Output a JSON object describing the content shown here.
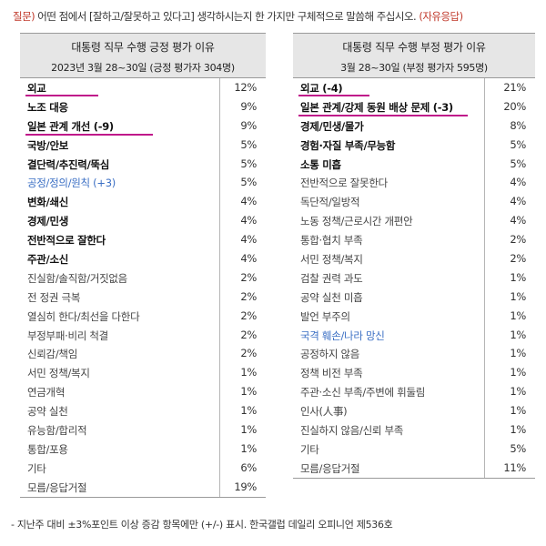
{
  "question": {
    "tag": "질문)",
    "text": " 어떤 점에서 [잘하고/잘못하고 있다고] 생각하시는지 한 가지만 구체적으로 말씀해 주십시오.",
    "tail": " (자유응답)"
  },
  "positive": {
    "title": "대통령 직무 수행 긍정 평가 이유",
    "subtitle": "2023년 3월 28~30일 (긍정 평가자 304명)",
    "rows": [
      {
        "label": "외교",
        "value": "12%",
        "style": "bold",
        "underline": 80
      },
      {
        "label": "노조 대응",
        "value": "9%",
        "style": "bold"
      },
      {
        "label": "일본 관계 개선 (-9)",
        "value": "9%",
        "style": "bold",
        "underline": 140
      },
      {
        "label": "국방/안보",
        "value": "5%",
        "style": "bold"
      },
      {
        "label": "결단력/추진력/뚝심",
        "value": "5%",
        "style": "bold"
      },
      {
        "label": "공정/정의/원칙 (+3)",
        "value": "5%",
        "style": "blue"
      },
      {
        "label": "변화/쇄신",
        "value": "4%",
        "style": "bold"
      },
      {
        "label": "경제/민생",
        "value": "4%",
        "style": "bold"
      },
      {
        "label": "전반적으로 잘한다",
        "value": "4%",
        "style": "bold"
      },
      {
        "label": "주관/소신",
        "value": "4%",
        "style": "bold"
      },
      {
        "label": "진실함/솔직함/거짓없음",
        "value": "2%",
        "style": "norm"
      },
      {
        "label": "전 정권 극복",
        "value": "2%",
        "style": "norm"
      },
      {
        "label": "열심히 한다/최선을 다한다",
        "value": "2%",
        "style": "norm"
      },
      {
        "label": "부정부패·비리 척결",
        "value": "2%",
        "style": "norm"
      },
      {
        "label": "신뢰감/책임",
        "value": "2%",
        "style": "norm"
      },
      {
        "label": "서민 정책/복지",
        "value": "1%",
        "style": "norm"
      },
      {
        "label": "연금개혁",
        "value": "1%",
        "style": "norm"
      },
      {
        "label": "공약 실천",
        "value": "1%",
        "style": "norm"
      },
      {
        "label": "유능함/합리적",
        "value": "1%",
        "style": "norm"
      },
      {
        "label": "통합/포용",
        "value": "1%",
        "style": "norm"
      },
      {
        "label": "기타",
        "value": "6%",
        "style": "norm"
      },
      {
        "label": "모름/응답거절",
        "value": "19%",
        "style": "norm"
      }
    ]
  },
  "negative": {
    "title": "대통령 직무 수행 부정 평가 이유",
    "subtitle": "3월 28~30일 (부정 평가자 595명)",
    "rows": [
      {
        "label": "외교 (-4)",
        "value": "21%",
        "style": "bold",
        "underline": 78
      },
      {
        "label": "일본 관계/강제 동원 배상 문제 (-3)",
        "value": "20%",
        "style": "bold",
        "underline": 186
      },
      {
        "label": "경제/민생/물가",
        "value": "8%",
        "style": "bold"
      },
      {
        "label": "경험·자질 부족/무능함",
        "value": "5%",
        "style": "bold"
      },
      {
        "label": "소통 미흡",
        "value": "5%",
        "style": "bold"
      },
      {
        "label": "전반적으로 잘못한다",
        "value": "4%",
        "style": "norm"
      },
      {
        "label": "독단적/일방적",
        "value": "4%",
        "style": "norm"
      },
      {
        "label": "노동 정책/근로시간 개편안",
        "value": "4%",
        "style": "norm"
      },
      {
        "label": "통합·협치 부족",
        "value": "2%",
        "style": "norm"
      },
      {
        "label": "서민 정책/복지",
        "value": "2%",
        "style": "norm"
      },
      {
        "label": "검찰 권력 과도",
        "value": "1%",
        "style": "norm"
      },
      {
        "label": "공약 실천 미흡",
        "value": "1%",
        "style": "norm"
      },
      {
        "label": "발언 부주의",
        "value": "1%",
        "style": "norm"
      },
      {
        "label": "국격 훼손/나라 망신",
        "value": "1%",
        "style": "blue"
      },
      {
        "label": "공정하지 않음",
        "value": "1%",
        "style": "norm"
      },
      {
        "label": "정책 비전 부족",
        "value": "1%",
        "style": "norm"
      },
      {
        "label": "주관·소신 부족/주변에 휘둘림",
        "value": "1%",
        "style": "norm"
      },
      {
        "label": "인사(人事)",
        "value": "1%",
        "style": "norm"
      },
      {
        "label": "진실하지 않음/신뢰 부족",
        "value": "1%",
        "style": "norm"
      },
      {
        "label": "기타",
        "value": "5%",
        "style": "norm"
      },
      {
        "label": "모름/응답거절",
        "value": "11%",
        "style": "norm"
      }
    ]
  },
  "colors": {
    "accent_red": "#c0392b",
    "underline_magenta": "#c0188a",
    "highlight_blue": "#3b6fc4",
    "header_bg": "#e6e6e6"
  },
  "footnote": "- 지난주 대비 ±3%포인트 이상 증감 항목에만 (+/-) 표시. 한국갤럽 데일리 오피니언 제536호"
}
